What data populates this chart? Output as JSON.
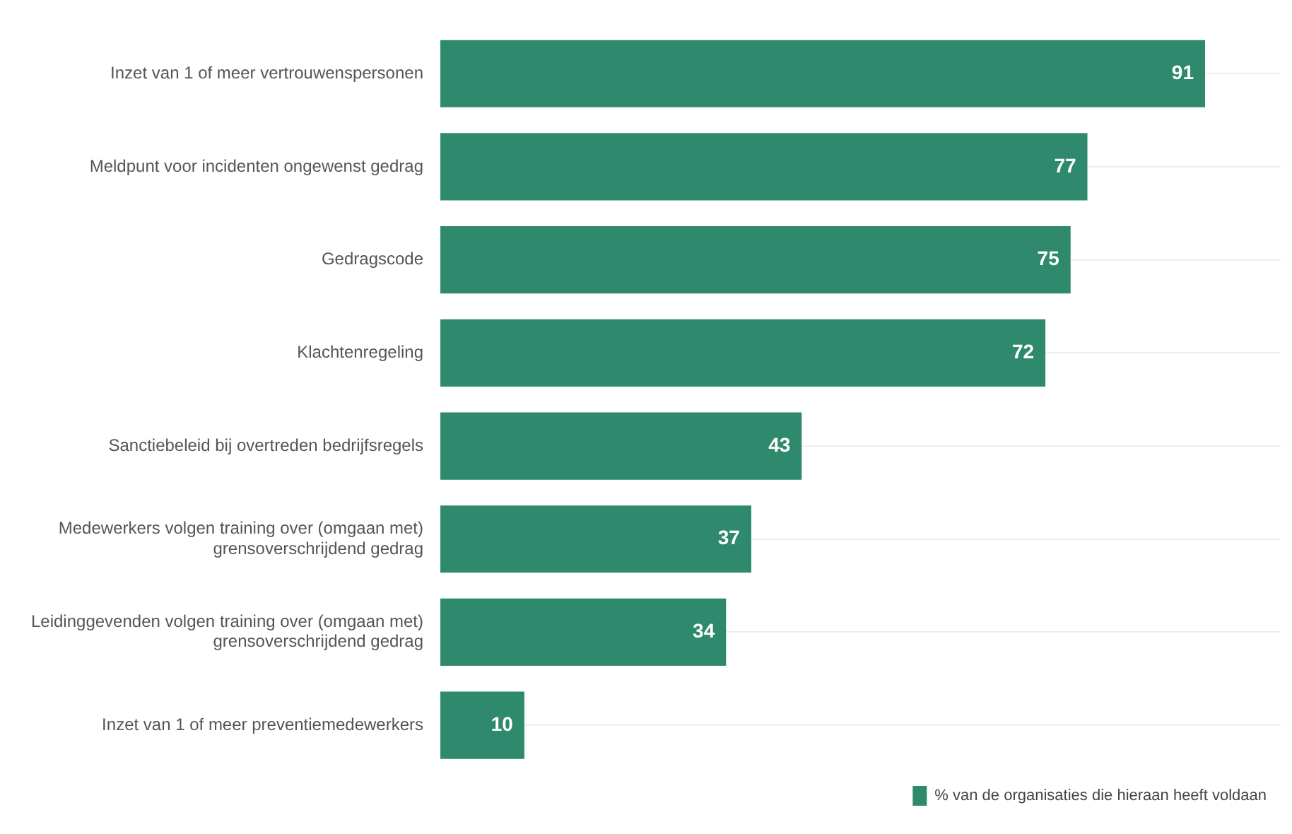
{
  "chart_data": {
    "type": "bar",
    "orientation": "horizontal",
    "categories": [
      "Inzet van 1 of meer vertrouwenspersonen",
      "Meldpunt voor incidenten ongewenst gedrag",
      "Gedragscode",
      "Klachtenregeling",
      "Sanctiebeleid bij overtreden bedrijfsregels",
      "Medewerkers volgen training over (omgaan met) grensoverschrijdend gedrag",
      "Leidinggevenden volgen training over (omgaan met) grensoverschrijdend gedrag",
      "Inzet van 1 of meer preventiemedewerkers"
    ],
    "series": [
      {
        "name": "% van de organisaties die hieraan heeft voldaan",
        "color": "#2f8a6d",
        "values": [
          91,
          77,
          75,
          72,
          43,
          37,
          34,
          10
        ]
      }
    ],
    "data_labels": true,
    "grid": "y",
    "legend": "bottom right",
    "tick_labels": "y"
  }
}
